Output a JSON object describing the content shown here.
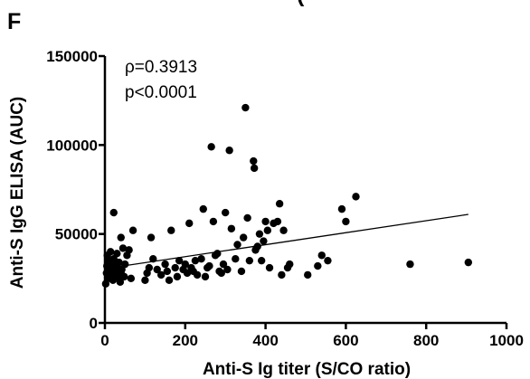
{
  "chart_data": {
    "type": "scatter",
    "panel_label": "F",
    "header_fragment": "(",
    "xlabel": "Anti-S Ig titer (S/CO ratio)",
    "ylabel": "Anti-S IgG ELISA (AUC)",
    "xlim": [
      0,
      1000
    ],
    "ylim": [
      0,
      150000
    ],
    "x_ticks": [
      0,
      200,
      400,
      600,
      800,
      1000
    ],
    "y_ticks": [
      0,
      50000,
      100000,
      150000
    ],
    "annotations": [
      "ρ=0.3913",
      "p<0.0001"
    ],
    "grid": false,
    "legend": "none",
    "marker_color": "#000000",
    "trendline": {
      "x": [
        0,
        905
      ],
      "y": [
        30500,
        61000
      ]
    },
    "points": [
      {
        "x": 2,
        "y": 22000
      },
      {
        "x": 4,
        "y": 28000
      },
      {
        "x": 5,
        "y": 32000
      },
      {
        "x": 6,
        "y": 38000
      },
      {
        "x": 8,
        "y": 25000
      },
      {
        "x": 10,
        "y": 35000
      },
      {
        "x": 12,
        "y": 30000
      },
      {
        "x": 14,
        "y": 40000
      },
      {
        "x": 15,
        "y": 27000
      },
      {
        "x": 18,
        "y": 33000
      },
      {
        "x": 20,
        "y": 24000
      },
      {
        "x": 22,
        "y": 36000
      },
      {
        "x": 25,
        "y": 29000
      },
      {
        "x": 28,
        "y": 31000
      },
      {
        "x": 30,
        "y": 39000
      },
      {
        "x": 32,
        "y": 26000
      },
      {
        "x": 35,
        "y": 34000
      },
      {
        "x": 38,
        "y": 23000
      },
      {
        "x": 40,
        "y": 28000
      },
      {
        "x": 42,
        "y": 30000
      },
      {
        "x": 45,
        "y": 42000
      },
      {
        "x": 48,
        "y": 26000
      },
      {
        "x": 50,
        "y": 33000
      },
      {
        "x": 55,
        "y": 38000
      },
      {
        "x": 60,
        "y": 41000
      },
      {
        "x": 65,
        "y": 25000
      },
      {
        "x": 70,
        "y": 52000
      },
      {
        "x": 22,
        "y": 62000
      },
      {
        "x": 40,
        "y": 48000
      },
      {
        "x": 100,
        "y": 24000
      },
      {
        "x": 105,
        "y": 28000
      },
      {
        "x": 110,
        "y": 31000
      },
      {
        "x": 115,
        "y": 48000
      },
      {
        "x": 120,
        "y": 36000
      },
      {
        "x": 130,
        "y": 30000
      },
      {
        "x": 140,
        "y": 27000
      },
      {
        "x": 150,
        "y": 33000
      },
      {
        "x": 155,
        "y": 29000
      },
      {
        "x": 160,
        "y": 24000
      },
      {
        "x": 165,
        "y": 52000
      },
      {
        "x": 175,
        "y": 31000
      },
      {
        "x": 180,
        "y": 26000
      },
      {
        "x": 185,
        "y": 35000
      },
      {
        "x": 195,
        "y": 30000
      },
      {
        "x": 200,
        "y": 33000
      },
      {
        "x": 205,
        "y": 28000
      },
      {
        "x": 210,
        "y": 56000
      },
      {
        "x": 215,
        "y": 31000
      },
      {
        "x": 220,
        "y": 29000
      },
      {
        "x": 225,
        "y": 35000
      },
      {
        "x": 230,
        "y": 27000
      },
      {
        "x": 240,
        "y": 36000
      },
      {
        "x": 245,
        "y": 64000
      },
      {
        "x": 250,
        "y": 26000
      },
      {
        "x": 255,
        "y": 31000
      },
      {
        "x": 260,
        "y": 32000
      },
      {
        "x": 265,
        "y": 99000
      },
      {
        "x": 270,
        "y": 57000
      },
      {
        "x": 275,
        "y": 38000
      },
      {
        "x": 280,
        "y": 39000
      },
      {
        "x": 285,
        "y": 29000
      },
      {
        "x": 290,
        "y": 28000
      },
      {
        "x": 295,
        "y": 33000
      },
      {
        "x": 300,
        "y": 62000
      },
      {
        "x": 305,
        "y": 30000
      },
      {
        "x": 310,
        "y": 97000
      },
      {
        "x": 315,
        "y": 53000
      },
      {
        "x": 325,
        "y": 36000
      },
      {
        "x": 330,
        "y": 44000
      },
      {
        "x": 340,
        "y": 29000
      },
      {
        "x": 345,
        "y": 48000
      },
      {
        "x": 350,
        "y": 121000
      },
      {
        "x": 355,
        "y": 59000
      },
      {
        "x": 360,
        "y": 35000
      },
      {
        "x": 370,
        "y": 91000
      },
      {
        "x": 372,
        "y": 87000
      },
      {
        "x": 375,
        "y": 41000
      },
      {
        "x": 380,
        "y": 43000
      },
      {
        "x": 385,
        "y": 50000
      },
      {
        "x": 390,
        "y": 35000
      },
      {
        "x": 395,
        "y": 46000
      },
      {
        "x": 400,
        "y": 57000
      },
      {
        "x": 405,
        "y": 52000
      },
      {
        "x": 410,
        "y": 31000
      },
      {
        "x": 420,
        "y": 56000
      },
      {
        "x": 430,
        "y": 57000
      },
      {
        "x": 435,
        "y": 67000
      },
      {
        "x": 440,
        "y": 27000
      },
      {
        "x": 445,
        "y": 52000
      },
      {
        "x": 455,
        "y": 31000
      },
      {
        "x": 460,
        "y": 33000
      },
      {
        "x": 505,
        "y": 27000
      },
      {
        "x": 530,
        "y": 32000
      },
      {
        "x": 540,
        "y": 38000
      },
      {
        "x": 555,
        "y": 35000
      },
      {
        "x": 590,
        "y": 64000
      },
      {
        "x": 600,
        "y": 57000
      },
      {
        "x": 625,
        "y": 71000
      },
      {
        "x": 760,
        "y": 33000
      },
      {
        "x": 905,
        "y": 34000
      }
    ]
  }
}
